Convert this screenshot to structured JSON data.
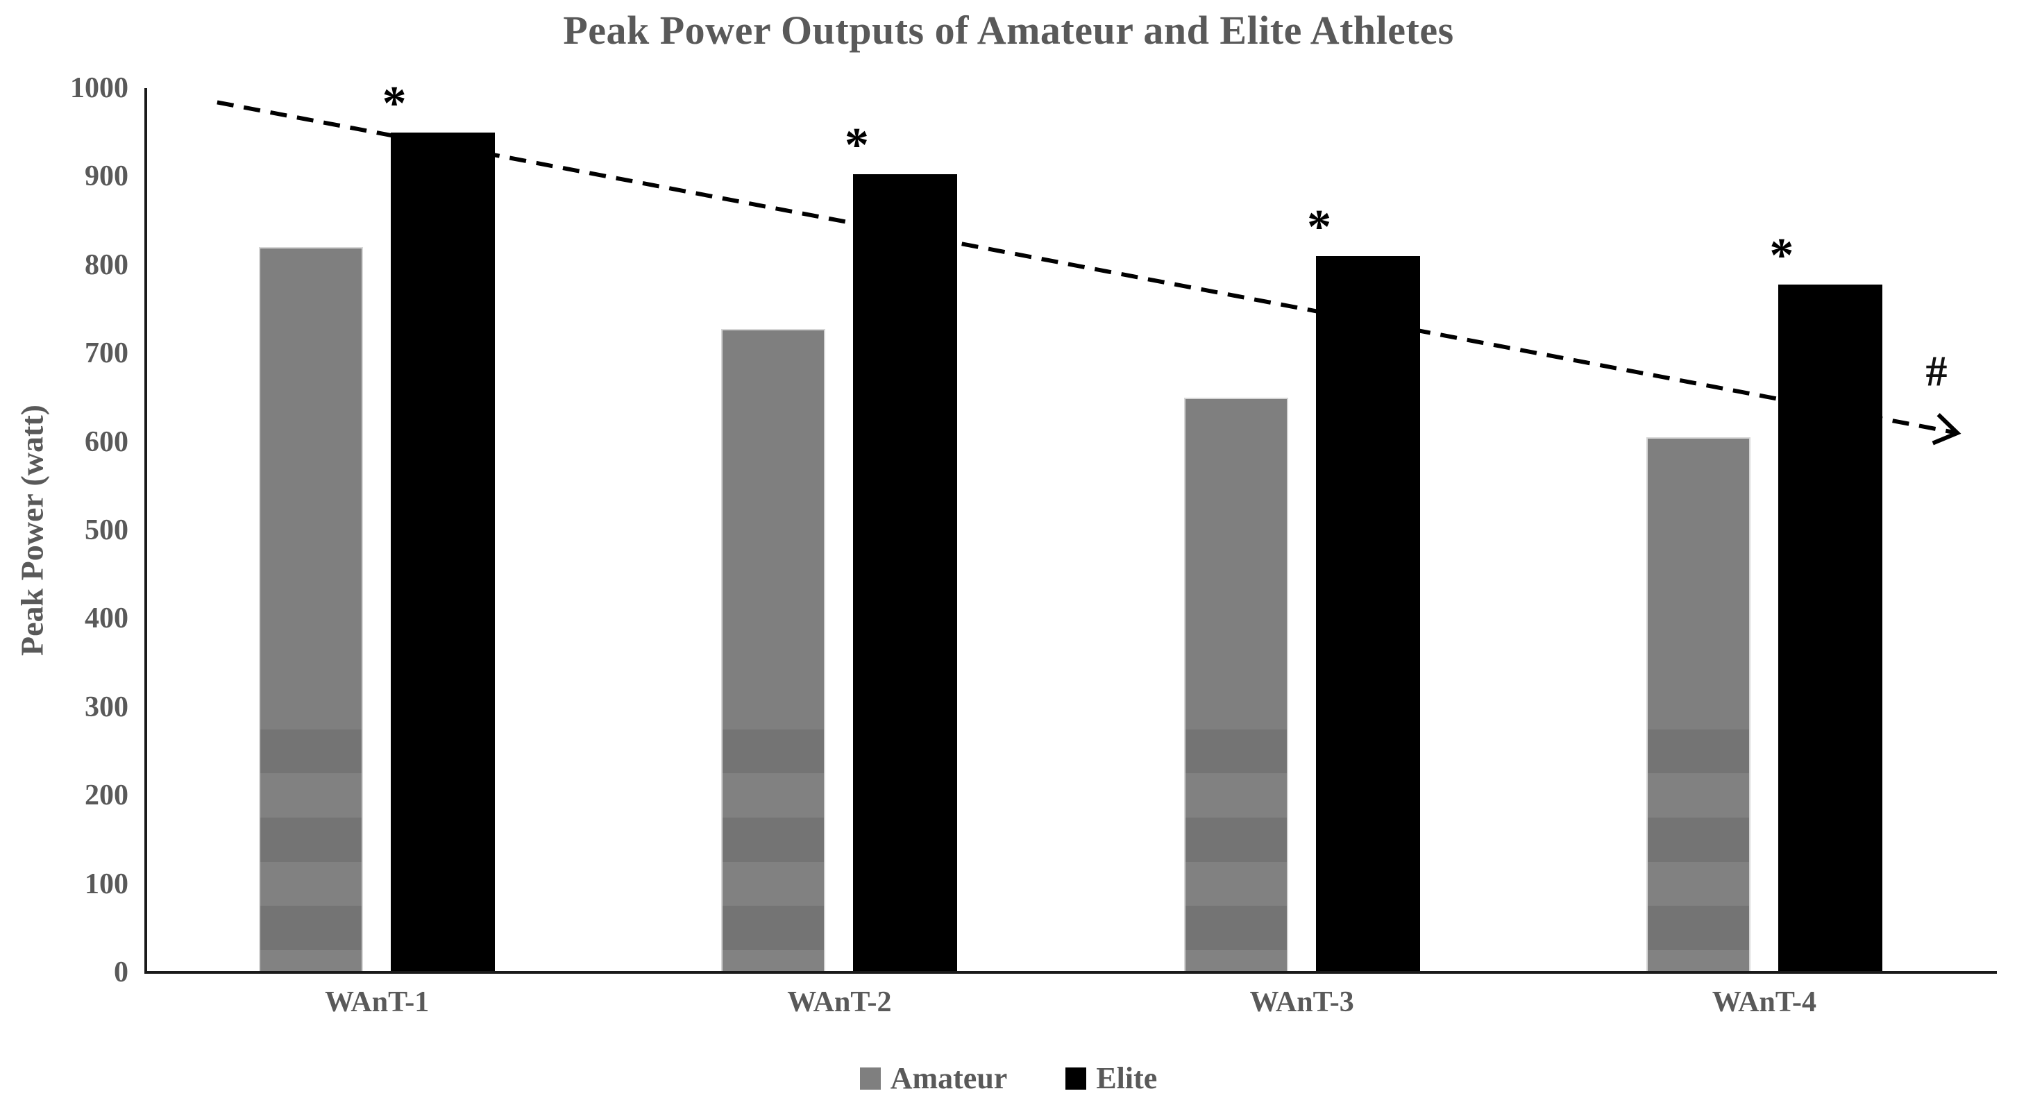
{
  "chart_data": {
    "type": "bar",
    "title": "Peak Power Outputs of Amateur and Elite Athletes",
    "xlabel": "",
    "ylabel": "Peak Power (watt)",
    "ylim": [
      0,
      1000
    ],
    "yticks": [
      0,
      100,
      200,
      300,
      400,
      500,
      600,
      700,
      800,
      900,
      1000
    ],
    "grid": false,
    "categories": [
      "WAnT-1",
      "WAnT-2",
      "WAnT-3",
      "WAnT-4"
    ],
    "series": [
      {
        "name": "Amateur",
        "color": "#7f7f7f",
        "values": [
          820,
          728,
          650,
          605
        ]
      },
      {
        "name": "Elite",
        "color": "#000000",
        "values": [
          950,
          903,
          810,
          778
        ]
      }
    ],
    "annotations": {
      "elite_significance_marker": "*",
      "asterisk_on_categories": [
        "WAnT-1",
        "WAnT-2",
        "WAnT-3",
        "WAnT-4"
      ],
      "trend_marker": "#"
    },
    "trendline": {
      "style": "dashed",
      "arrow": true,
      "color": "#000000",
      "start_watt": 984,
      "end_watt": 610
    },
    "legend": {
      "position": "bottom",
      "entries": [
        "Amateur",
        "Elite"
      ]
    },
    "colors": {
      "text": "#595959",
      "axis": "#1a1a1a",
      "amateur_band_dark": "#747474",
      "amateur_band_light": "#818181"
    }
  }
}
